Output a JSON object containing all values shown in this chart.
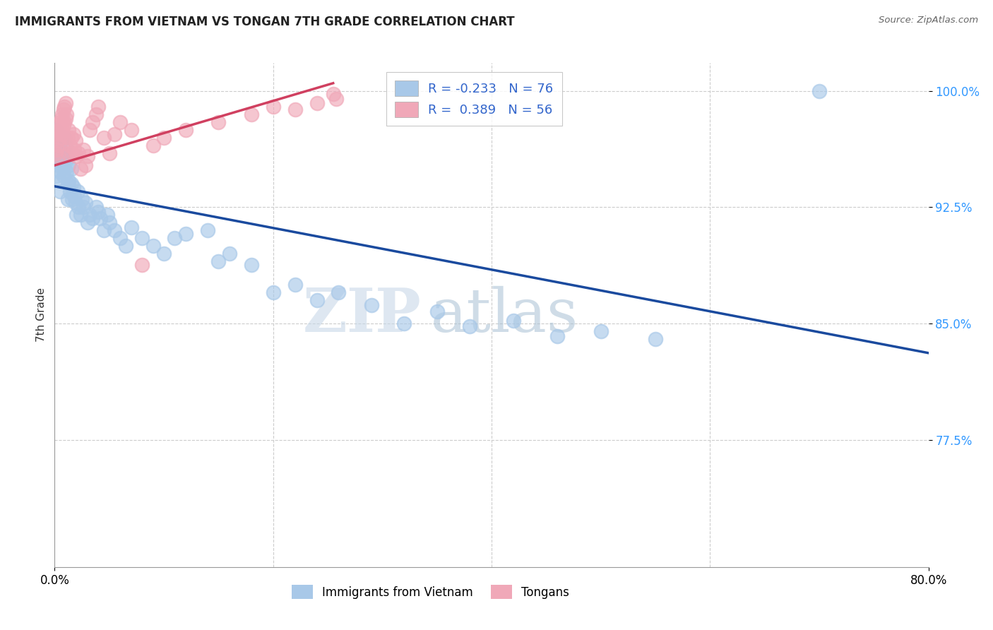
{
  "title": "IMMIGRANTS FROM VIETNAM VS TONGAN 7TH GRADE CORRELATION CHART",
  "source": "Source: ZipAtlas.com",
  "ylabel": "7th Grade",
  "ytick_labels": [
    "100.0%",
    "92.5%",
    "85.0%",
    "77.5%"
  ],
  "ytick_values": [
    1.0,
    0.925,
    0.85,
    0.775
  ],
  "xtick_labels": [
    "0.0%",
    "80.0%"
  ],
  "xtick_values": [
    0.0,
    0.8
  ],
  "legend_blue_r": "R = -0.233",
  "legend_blue_n": "N = 76",
  "legend_pink_r": "R =  0.389",
  "legend_pink_n": "N = 56",
  "legend_label_blue": "Immigrants from Vietnam",
  "legend_label_pink": "Tongans",
  "blue_color": "#a8c8e8",
  "pink_color": "#f0a8b8",
  "blue_line_color": "#1a4a9e",
  "pink_line_color": "#d04060",
  "watermark_zip": "ZIP",
  "watermark_atlas": "atlas",
  "xmin": 0.0,
  "xmax": 0.8,
  "ymin": 0.693,
  "ymax": 1.018,
  "blue_trend_x": [
    0.0,
    0.8
  ],
  "blue_trend_y": [
    0.9385,
    0.831
  ],
  "pink_trend_x": [
    0.0,
    0.255
  ],
  "pink_trend_y": [
    0.952,
    1.005
  ],
  "blue_points_x": [
    0.001,
    0.001,
    0.002,
    0.002,
    0.003,
    0.003,
    0.004,
    0.004,
    0.005,
    0.005,
    0.005,
    0.006,
    0.006,
    0.007,
    0.007,
    0.008,
    0.008,
    0.009,
    0.009,
    0.01,
    0.01,
    0.011,
    0.011,
    0.012,
    0.012,
    0.013,
    0.013,
    0.014,
    0.015,
    0.015,
    0.016,
    0.017,
    0.018,
    0.019,
    0.02,
    0.021,
    0.022,
    0.024,
    0.025,
    0.026,
    0.028,
    0.03,
    0.032,
    0.035,
    0.038,
    0.04,
    0.042,
    0.045,
    0.048,
    0.05,
    0.055,
    0.06,
    0.065,
    0.07,
    0.08,
    0.09,
    0.1,
    0.11,
    0.12,
    0.14,
    0.15,
    0.16,
    0.18,
    0.2,
    0.22,
    0.24,
    0.26,
    0.29,
    0.32,
    0.35,
    0.38,
    0.42,
    0.46,
    0.5,
    0.55,
    0.7
  ],
  "blue_points_y": [
    0.975,
    0.96,
    0.955,
    0.945,
    0.965,
    0.97,
    0.958,
    0.948,
    0.952,
    0.942,
    0.935,
    0.968,
    0.958,
    0.96,
    0.95,
    0.955,
    0.945,
    0.97,
    0.96,
    0.965,
    0.955,
    0.958,
    0.948,
    0.94,
    0.93,
    0.952,
    0.942,
    0.935,
    0.95,
    0.94,
    0.93,
    0.938,
    0.932,
    0.928,
    0.92,
    0.935,
    0.925,
    0.92,
    0.93,
    0.925,
    0.928,
    0.915,
    0.92,
    0.918,
    0.925,
    0.922,
    0.918,
    0.91,
    0.92,
    0.915,
    0.91,
    0.905,
    0.9,
    0.912,
    0.905,
    0.9,
    0.895,
    0.905,
    0.908,
    0.91,
    0.89,
    0.895,
    0.888,
    0.87,
    0.875,
    0.865,
    0.87,
    0.862,
    0.85,
    0.858,
    0.848,
    0.852,
    0.842,
    0.845,
    0.84,
    1.0
  ],
  "pink_points_x": [
    0.001,
    0.001,
    0.002,
    0.002,
    0.003,
    0.003,
    0.004,
    0.004,
    0.005,
    0.005,
    0.006,
    0.006,
    0.007,
    0.007,
    0.008,
    0.008,
    0.009,
    0.009,
    0.01,
    0.01,
    0.011,
    0.012,
    0.012,
    0.013,
    0.014,
    0.015,
    0.016,
    0.017,
    0.018,
    0.019,
    0.02,
    0.022,
    0.024,
    0.026,
    0.028,
    0.03,
    0.032,
    0.035,
    0.038,
    0.04,
    0.045,
    0.05,
    0.055,
    0.06,
    0.07,
    0.08,
    0.09,
    0.1,
    0.12,
    0.15,
    0.18,
    0.2,
    0.22,
    0.24,
    0.255,
    0.258
  ],
  "pink_points_y": [
    0.978,
    0.96,
    0.972,
    0.962,
    0.968,
    0.958,
    0.975,
    0.965,
    0.98,
    0.97,
    0.982,
    0.972,
    0.985,
    0.975,
    0.988,
    0.978,
    0.99,
    0.98,
    0.992,
    0.982,
    0.985,
    0.97,
    0.96,
    0.975,
    0.965,
    0.97,
    0.96,
    0.972,
    0.962,
    0.968,
    0.958,
    0.96,
    0.95,
    0.962,
    0.952,
    0.958,
    0.975,
    0.98,
    0.985,
    0.99,
    0.97,
    0.96,
    0.972,
    0.98,
    0.975,
    0.888,
    0.965,
    0.97,
    0.975,
    0.98,
    0.985,
    0.99,
    0.988,
    0.992,
    0.998,
    0.995
  ]
}
